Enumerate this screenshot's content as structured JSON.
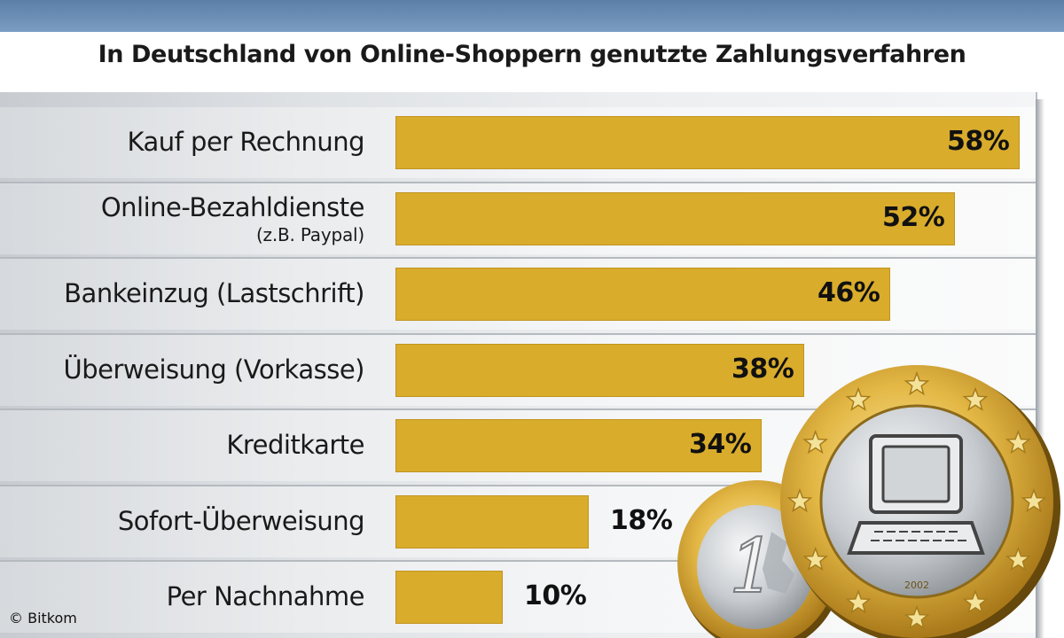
{
  "subtitle": "In Deutschland von Online-Shoppern genutzte Zahlungsverfahren",
  "copyright": "© Bitkom",
  "coin_year": "2002",
  "colors": {
    "bar": "#d9ac2c",
    "panel": "#e3e6e9",
    "top_band": "#6b8db5"
  },
  "chart_data": {
    "type": "bar",
    "orientation": "horizontal",
    "title": "",
    "subtitle": "In Deutschland von Online-Shoppern genutzte Zahlungsverfahren",
    "xlabel": "",
    "ylabel": "",
    "xlim": [
      0,
      58
    ],
    "grid": false,
    "legend": "none",
    "categories": [
      {
        "label": "Kauf per Rechnung",
        "sub": ""
      },
      {
        "label": "Online-Bezahldienste",
        "sub": "(z.B. Paypal)"
      },
      {
        "label": "Bankeinzug (Lastschrift)",
        "sub": ""
      },
      {
        "label": "Überweisung (Vorkasse)",
        "sub": ""
      },
      {
        "label": "Kreditkarte",
        "sub": ""
      },
      {
        "label": "Sofort-Überweisung",
        "sub": ""
      },
      {
        "label": "Per Nachnahme",
        "sub": ""
      }
    ],
    "values": [
      58,
      52,
      46,
      38,
      34,
      18,
      10
    ],
    "value_labels": [
      "58%",
      "52%",
      "46%",
      "38%",
      "34%",
      "18%",
      "10%"
    ]
  }
}
